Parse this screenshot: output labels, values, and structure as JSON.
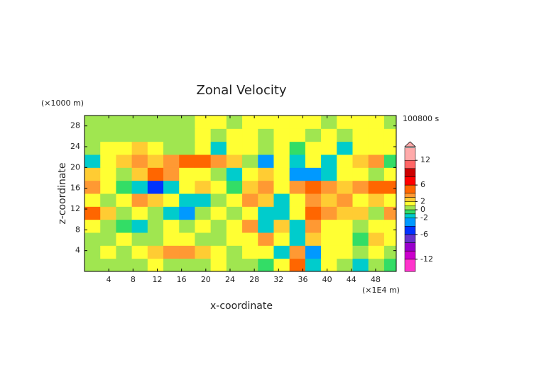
{
  "chart_data": {
    "type": "heatmap",
    "title": "Zonal Velocity",
    "x_label": "x-coordinate",
    "y_label": "z-coordinate",
    "x_unit": "(×1E4 m)",
    "y_unit": "(×1000 m)",
    "time_label": "100800 s",
    "x": [
      1.3,
      3.9,
      6.5,
      9.1,
      11.7,
      14.3,
      16.9,
      19.5,
      22.1,
      24.7,
      27.3,
      29.9,
      32.5,
      35.1,
      37.7,
      40.3,
      42.9,
      45.5,
      48.1,
      50.7
    ],
    "y": [
      1.25,
      3.75,
      6.25,
      8.75,
      11.25,
      13.75,
      16.25,
      18.75,
      21.25,
      23.75,
      26.25,
      28.75
    ],
    "z": [
      [
        0.5,
        0.5,
        0.5,
        0.5,
        1.5,
        0.5,
        0.5,
        0.5,
        1.5,
        0.5,
        0.5,
        -0.5,
        1.5,
        4.5,
        -2,
        1.5,
        0.5,
        -1.5,
        0.5,
        -0.5
      ],
      [
        0.5,
        1.5,
        0.5,
        1.5,
        2.5,
        3.5,
        3.5,
        2.5,
        1.5,
        0.5,
        1.5,
        1.5,
        -1.5,
        3.5,
        -3,
        1.5,
        1.5,
        0.5,
        1.5,
        0.5
      ],
      [
        0.5,
        0.5,
        1.5,
        0.5,
        0.5,
        1.5,
        1.5,
        0.5,
        0.5,
        1.5,
        1.5,
        3.5,
        1.5,
        -1.5,
        2.5,
        1.5,
        1.5,
        -1,
        2.5,
        1.5
      ],
      [
        1.5,
        0.5,
        -1,
        -1.5,
        0.5,
        1.5,
        0.5,
        1.5,
        0.5,
        1.5,
        3.5,
        -2,
        2.5,
        -1.5,
        3.5,
        1.5,
        1.5,
        0.5,
        1.5,
        1.5
      ],
      [
        4.5,
        2.5,
        0.5,
        1.5,
        0.5,
        -1.5,
        -2.5,
        0.5,
        1.5,
        0.5,
        1.5,
        -2,
        -1.5,
        1.5,
        4.5,
        3.5,
        2.5,
        2.5,
        0.5,
        3.5
      ],
      [
        1.5,
        0.5,
        1.5,
        3.5,
        2.5,
        1.5,
        -1.5,
        -2,
        0.5,
        1.5,
        3.5,
        2.5,
        -2,
        1.5,
        3.5,
        2.5,
        3.5,
        1.5,
        2.5,
        1.5
      ],
      [
        3.5,
        1.5,
        -0.5,
        -1.5,
        -5,
        -1.5,
        1.5,
        2.5,
        1.5,
        -0.5,
        2.5,
        3.5,
        1.5,
        3.5,
        4.5,
        3.5,
        2.5,
        3.5,
        5,
        4.5
      ],
      [
        2.5,
        1.5,
        0.5,
        2.5,
        5,
        3.5,
        1.5,
        1.5,
        0.5,
        -2,
        1.5,
        2.5,
        1.5,
        -3,
        -4,
        -2,
        1.5,
        1.5,
        0.5,
        1.5
      ],
      [
        -1.5,
        1.5,
        2.5,
        3.5,
        2.5,
        3.5,
        4.5,
        5,
        3.5,
        2.5,
        0.5,
        -3,
        1.5,
        -1.5,
        1.5,
        -2,
        1.5,
        2.5,
        3.5,
        -1
      ],
      [
        0.5,
        1.5,
        1.5,
        2.5,
        1.5,
        0.5,
        0.5,
        1.5,
        -1.5,
        1.5,
        1.5,
        0.5,
        1.5,
        -0.5,
        1.5,
        1.5,
        -1.5,
        1.5,
        1.5,
        1.5
      ],
      [
        0.5,
        0.5,
        0.5,
        0.5,
        0.5,
        0.5,
        0.5,
        1.5,
        0.5,
        1.5,
        1.5,
        0.5,
        1.5,
        1.5,
        0.5,
        1.5,
        0.5,
        1.5,
        1.5,
        1.5
      ],
      [
        0.5,
        0.5,
        0.5,
        0.5,
        0.5,
        0.5,
        0.5,
        1.5,
        1.5,
        0.5,
        1.5,
        1.5,
        1.5,
        1.5,
        1.5,
        0.5,
        1.5,
        1.5,
        1.5,
        0.5
      ]
    ],
    "xlim": [
      0,
      51.4
    ],
    "ylim": [
      0,
      30
    ],
    "xticks": [
      4,
      8,
      12,
      16,
      20,
      24,
      28,
      32,
      36,
      40,
      44,
      48
    ],
    "yticks": [
      4,
      8,
      12,
      16,
      20,
      24,
      28
    ],
    "colorbar": {
      "levels": [
        -15,
        -12,
        -10,
        -8,
        -6,
        -4,
        -2,
        -1,
        0,
        1,
        2,
        3,
        4,
        6,
        8,
        10,
        12,
        15
      ],
      "colors": [
        "#ff33cc",
        "#cc00cc",
        "#9900cc",
        "#6633cc",
        "#0033ff",
        "#0099ff",
        "#00cccc",
        "#33dd66",
        "#a0e650",
        "#ffff33",
        "#ffcc33",
        "#ff9933",
        "#ff6600",
        "#ff0000",
        "#cc0000",
        "#ff6666",
        "#ffaaaa"
      ],
      "lim": [
        -15.3,
        15.3
      ],
      "ticks": [
        12,
        6,
        2,
        0,
        -2,
        -6,
        -12
      ]
    }
  }
}
